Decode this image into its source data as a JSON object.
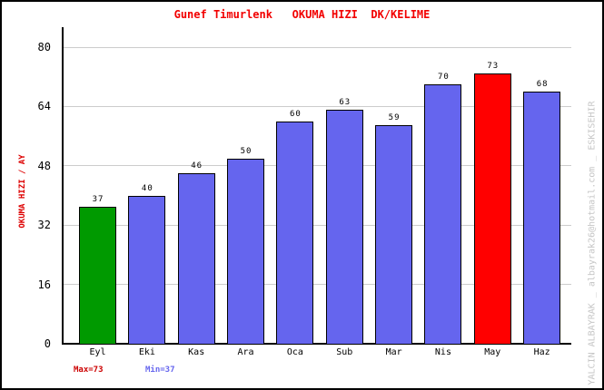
{
  "window": {
    "background": "#FFFFFF",
    "border_color": "#000000"
  },
  "title": {
    "text": "Gunef Timurlenk   OKUMA HIZI  DK/KELIME",
    "color": "#F20000"
  },
  "y_axis_title": {
    "text": "OKUMA HIZI / AY",
    "color": "#DD0000"
  },
  "footer": {
    "max_label": "Max=73",
    "max_color": "#CC0000",
    "min_label": "Min=37",
    "min_color": "#6666EE"
  },
  "watermark": {
    "text": "YALCIN ALBAYRAK _ albayrak26@hotmail.com _ ESKISEHIR",
    "color": "#C6C6C6"
  },
  "chart_data": {
    "type": "bar",
    "title": "Gunef Timurlenk   OKUMA HIZI  DK/KELIME",
    "ylabel": "OKUMA HIZI / AY",
    "xlabel": "",
    "categories": [
      "Eyl",
      "Eki",
      "Kas",
      "Ara",
      "Oca",
      "Sub",
      "Mar",
      "Nis",
      "May",
      "Haz"
    ],
    "values": [
      37,
      40,
      46,
      50,
      60,
      63,
      59,
      70,
      73,
      68
    ],
    "ylim": [
      0,
      80
    ],
    "yticks": [
      0,
      16,
      32,
      48,
      64,
      80
    ],
    "grid": true,
    "legend": "none",
    "value_labels": true,
    "colors": {
      "default_bar": "#6565EE",
      "min_bar": "#009A00",
      "max_bar": "#FF0000",
      "gridline": "#CCCCCC",
      "axis": "#000000"
    },
    "min_index": 0,
    "max_index": 8
  }
}
